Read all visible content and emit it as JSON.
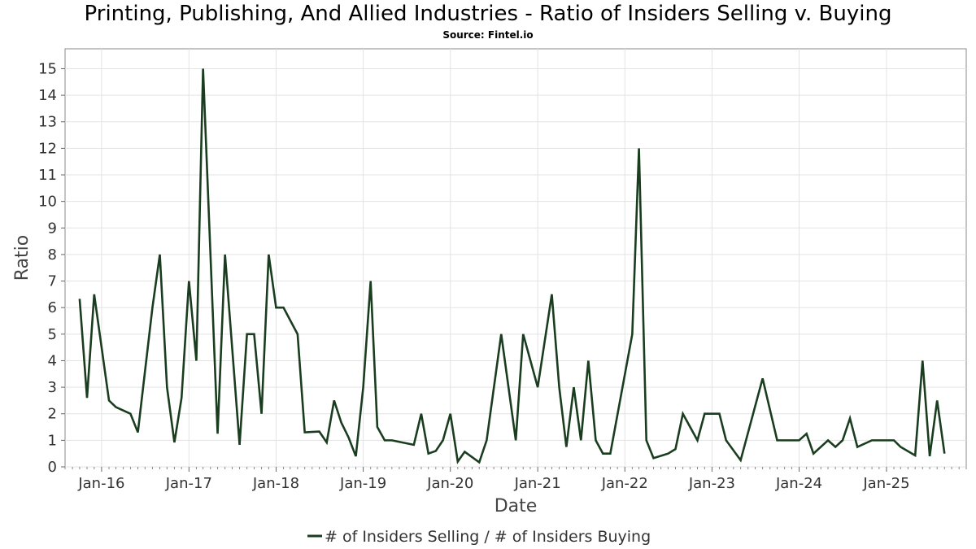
{
  "chart_data": {
    "type": "line",
    "title": "Printing, Publishing, And Allied Industries - Ratio of Insiders Selling v. Buying",
    "subtitle": "Source: Fintel.io",
    "xlabel": "Date",
    "ylabel": "Ratio",
    "ylim": [
      0,
      15.75
    ],
    "xlim": [
      "2015-08-01",
      "2025-12-01"
    ],
    "y_ticks": [
      0,
      1,
      2,
      3,
      4,
      5,
      6,
      7,
      8,
      9,
      10,
      11,
      12,
      13,
      14,
      15
    ],
    "x_ticks": [
      {
        "date": "2016-01-01",
        "label": "Jan-16"
      },
      {
        "date": "2017-01-01",
        "label": "Jan-17"
      },
      {
        "date": "2018-01-01",
        "label": "Jan-18"
      },
      {
        "date": "2019-01-01",
        "label": "Jan-19"
      },
      {
        "date": "2020-01-01",
        "label": "Jan-20"
      },
      {
        "date": "2021-01-01",
        "label": "Jan-21"
      },
      {
        "date": "2022-01-01",
        "label": "Jan-22"
      },
      {
        "date": "2023-01-01",
        "label": "Jan-23"
      },
      {
        "date": "2024-01-01",
        "label": "Jan-24"
      },
      {
        "date": "2025-01-01",
        "label": "Jan-25"
      }
    ],
    "grid": true,
    "legend_position": "bottom",
    "series": [
      {
        "name": "# of Insiders Selling / # of Insiders Buying",
        "color": "#1a3d1f",
        "points": [
          [
            "2015-10-01",
            6.33
          ],
          [
            "2015-11-01",
            2.6
          ],
          [
            "2015-12-01",
            6.5
          ],
          [
            "2016-02-01",
            2.5
          ],
          [
            "2016-03-01",
            2.25
          ],
          [
            "2016-05-01",
            2.0
          ],
          [
            "2016-06-01",
            1.3
          ],
          [
            "2016-08-01",
            6.0
          ],
          [
            "2016-09-01",
            8.0
          ],
          [
            "2016-10-01",
            3.0
          ],
          [
            "2016-11-01",
            0.92
          ],
          [
            "2016-12-01",
            2.6
          ],
          [
            "2017-01-01",
            7.0
          ],
          [
            "2017-02-01",
            4.0
          ],
          [
            "2017-03-01",
            15.0
          ],
          [
            "2017-05-01",
            1.25
          ],
          [
            "2017-06-01",
            8.0
          ],
          [
            "2017-08-01",
            0.83
          ],
          [
            "2017-09-01",
            5.0
          ],
          [
            "2017-10-01",
            5.0
          ],
          [
            "2017-11-01",
            2.0
          ],
          [
            "2017-12-01",
            8.0
          ],
          [
            "2018-01-01",
            6.0
          ],
          [
            "2018-02-01",
            6.0
          ],
          [
            "2018-04-01",
            5.0
          ],
          [
            "2018-05-01",
            1.3
          ],
          [
            "2018-07-01",
            1.33
          ],
          [
            "2018-08-01",
            0.92
          ],
          [
            "2018-09-01",
            2.5
          ],
          [
            "2018-10-01",
            1.67
          ],
          [
            "2018-11-01",
            1.1
          ],
          [
            "2018-12-01",
            0.4
          ],
          [
            "2019-01-01",
            3.0
          ],
          [
            "2019-02-01",
            7.0
          ],
          [
            "2019-03-01",
            1.5
          ],
          [
            "2019-04-01",
            1.0
          ],
          [
            "2019-05-01",
            1.0
          ],
          [
            "2019-08-01",
            0.83
          ],
          [
            "2019-09-01",
            2.0
          ],
          [
            "2019-10-01",
            0.5
          ],
          [
            "2019-11-01",
            0.6
          ],
          [
            "2019-12-01",
            1.0
          ],
          [
            "2020-01-01",
            2.0
          ],
          [
            "2020-02-01",
            0.2
          ],
          [
            "2020-03-01",
            0.57
          ],
          [
            "2020-05-01",
            0.17
          ],
          [
            "2020-06-01",
            1.0
          ],
          [
            "2020-08-01",
            5.0
          ],
          [
            "2020-10-01",
            1.0
          ],
          [
            "2020-11-01",
            5.0
          ],
          [
            "2021-01-01",
            3.0
          ],
          [
            "2021-03-01",
            6.5
          ],
          [
            "2021-04-01",
            3.0
          ],
          [
            "2021-05-01",
            0.75
          ],
          [
            "2021-06-01",
            3.0
          ],
          [
            "2021-07-01",
            1.0
          ],
          [
            "2021-08-01",
            4.0
          ],
          [
            "2021-09-01",
            1.0
          ],
          [
            "2021-10-01",
            0.5
          ],
          [
            "2021-11-01",
            0.5
          ],
          [
            "2022-02-01",
            5.0
          ],
          [
            "2022-03-01",
            12.0
          ],
          [
            "2022-04-01",
            1.0
          ],
          [
            "2022-05-01",
            0.33
          ],
          [
            "2022-07-01",
            0.5
          ],
          [
            "2022-08-01",
            0.67
          ],
          [
            "2022-09-01",
            2.0
          ],
          [
            "2022-11-01",
            1.0
          ],
          [
            "2022-12-01",
            2.0
          ],
          [
            "2023-01-01",
            2.0
          ],
          [
            "2023-02-01",
            2.0
          ],
          [
            "2023-03-01",
            1.0
          ],
          [
            "2023-05-01",
            0.25
          ],
          [
            "2023-08-01",
            3.33
          ],
          [
            "2023-10-01",
            1.0
          ],
          [
            "2023-11-01",
            1.0
          ],
          [
            "2024-01-01",
            1.0
          ],
          [
            "2024-02-01",
            1.25
          ],
          [
            "2024-03-01",
            0.5
          ],
          [
            "2024-05-01",
            1.0
          ],
          [
            "2024-06-01",
            0.75
          ],
          [
            "2024-07-01",
            1.0
          ],
          [
            "2024-08-01",
            1.83
          ],
          [
            "2024-09-01",
            0.75
          ],
          [
            "2024-11-01",
            1.0
          ],
          [
            "2025-02-01",
            1.0
          ],
          [
            "2025-03-01",
            0.75
          ],
          [
            "2025-05-01",
            0.43
          ],
          [
            "2025-06-01",
            4.0
          ],
          [
            "2025-07-01",
            0.4
          ],
          [
            "2025-08-01",
            2.5
          ],
          [
            "2025-09-01",
            0.5
          ]
        ]
      }
    ]
  }
}
